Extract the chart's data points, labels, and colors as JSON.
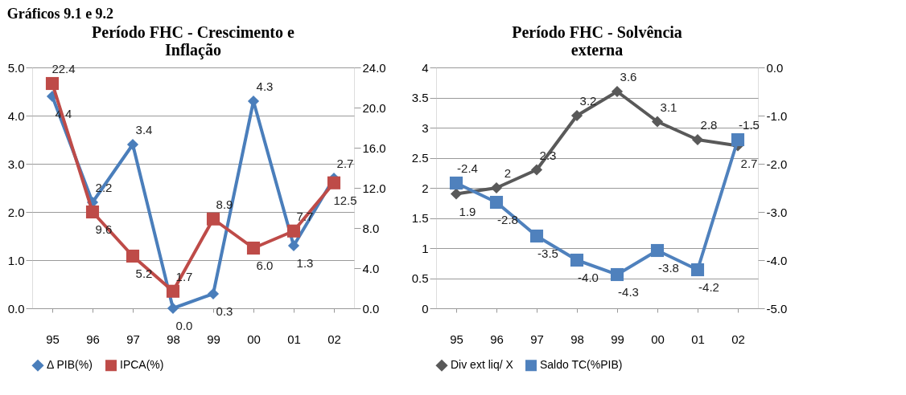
{
  "chart_data": [
    {
      "type": "line",
      "title": "Período FHC - Crescimento e Inflação",
      "annotations": [
        "Gráficos 9.1 e 9.2"
      ],
      "categories": [
        "95",
        "96",
        "97",
        "98",
        "99",
        "00",
        "01",
        "02"
      ],
      "series": [
        {
          "name": "Δ PIB(%)",
          "color": "#4a7ebb",
          "marker": "diamond",
          "values": [
            4.4,
            2.2,
            3.4,
            0.0,
            0.3,
            4.3,
            1.3,
            2.7
          ],
          "value_labels": [
            "4.4",
            "2.2",
            "3.4",
            "0.0",
            "0.3",
            "4.3",
            "1.3",
            "2.7"
          ]
        },
        {
          "name": "IPCA(%)",
          "color": "#be4b48",
          "marker": "square",
          "axis": "y2",
          "values": [
            22.4,
            9.6,
            5.2,
            1.7,
            8.9,
            6.0,
            7.7,
            12.5
          ],
          "value_labels": [
            "22.4",
            "9.6",
            "5.2",
            "1.7",
            "8.9",
            "6.0",
            "7.7",
            "12.5"
          ]
        }
      ],
      "ylim": [
        0,
        5
      ],
      "yticks": [
        {
          "value": 0,
          "label": "0.0"
        },
        {
          "value": 1,
          "label": "1.0"
        },
        {
          "value": 2,
          "label": "2.0"
        },
        {
          "value": 3,
          "label": "3.0"
        },
        {
          "value": 4,
          "label": "4.0"
        },
        {
          "value": 5,
          "label": "5.0"
        }
      ],
      "y2lim": [
        0,
        24
      ],
      "y2ticks": [
        {
          "value": 0,
          "label": "0.0"
        },
        {
          "value": 4,
          "label": "4.0"
        },
        {
          "value": 8,
          "label": "8.0"
        },
        {
          "value": 12,
          "label": "12.0"
        },
        {
          "value": 16,
          "label": "16.0"
        },
        {
          "value": 20,
          "label": "20.0"
        },
        {
          "value": 24,
          "label": "24.0"
        }
      ],
      "grid": "y",
      "legend": "bottom"
    },
    {
      "type": "line",
      "title": "Período FHC - Solvência externa",
      "categories": [
        "95",
        "96",
        "97",
        "98",
        "99",
        "00",
        "01",
        "02"
      ],
      "series": [
        {
          "name": "Div ext liq/ X",
          "color": "#595959",
          "marker": "diamond",
          "values": [
            1.9,
            2,
            2.3,
            3.2,
            3.6,
            3.1,
            2.8,
            2.7
          ],
          "value_labels": [
            "1.9",
            "2",
            "2.3",
            "3.2",
            "3.6",
            "3.1",
            "2.8",
            "2.7"
          ]
        },
        {
          "name": "Saldo TC(%PIB)",
          "color": "#4f81bd",
          "marker": "square",
          "axis": "y2",
          "values": [
            -2.4,
            -2.8,
            -3.5,
            -4.0,
            -4.3,
            -3.8,
            -4.2,
            -1.5
          ],
          "value_labels": [
            "-2.4",
            "-2.8",
            "-3.5",
            "-4.0",
            "-4.3",
            "-3.8",
            "-4.2",
            "-1.5"
          ]
        }
      ],
      "ylim": [
        0,
        4
      ],
      "yticks": [
        0,
        0.5,
        1,
        1.5,
        2,
        2.5,
        3,
        3.5,
        4
      ],
      "y2lim": [
        -5,
        0
      ],
      "y2ticks": [
        {
          "value": -5,
          "label": "-5.0"
        },
        {
          "value": -4,
          "label": "-4.0"
        },
        {
          "value": -3,
          "label": "-3.0"
        },
        {
          "value": -2,
          "label": "-2.0"
        },
        {
          "value": -1,
          "label": "-1.0"
        },
        {
          "value": 0,
          "label": "0.0"
        }
      ],
      "grid": "y",
      "legend": "bottom"
    }
  ]
}
